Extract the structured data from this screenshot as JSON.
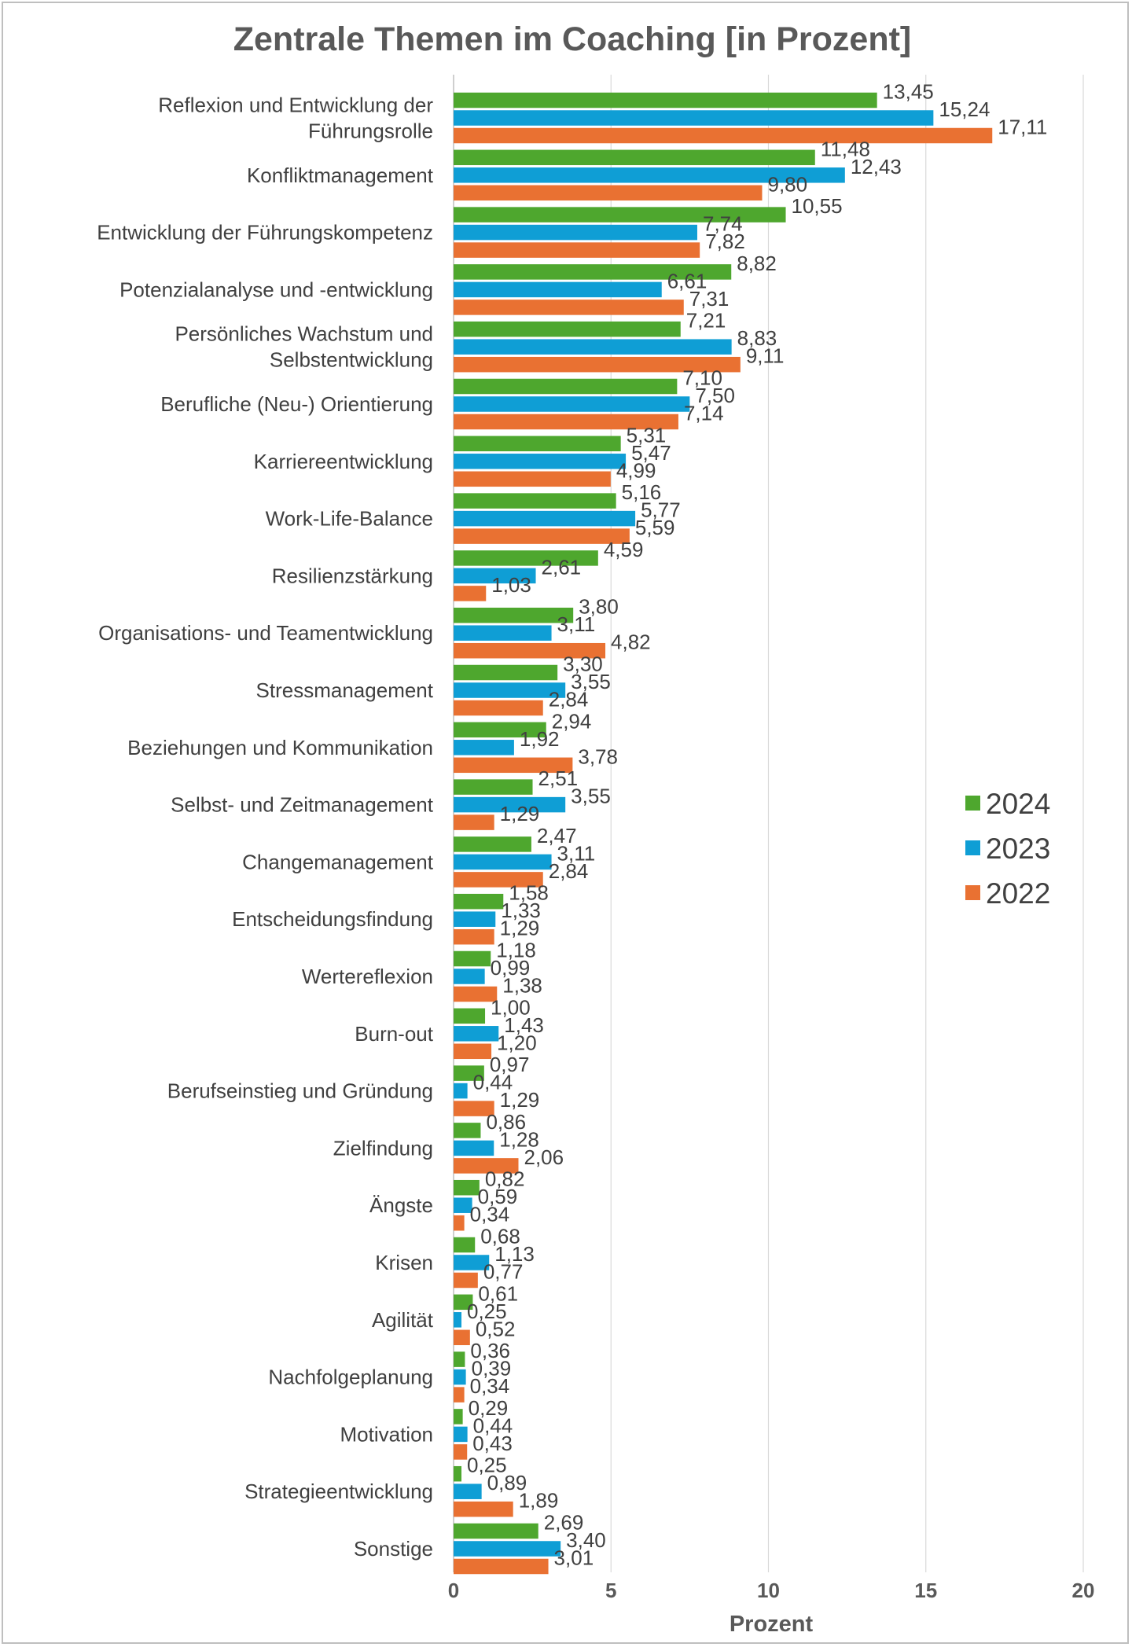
{
  "chart_data": {
    "type": "bar",
    "orientation": "horizontal",
    "title": "Zentrale Themen im Coaching [in Prozent]",
    "xlabel": "Prozent",
    "ylabel": "",
    "xlim": [
      0,
      20
    ],
    "xticks": [
      "0",
      "5",
      "10",
      "15",
      "20"
    ],
    "grid": "vertical",
    "legend_position": "right",
    "categories": [
      [
        "Reflexion und Entwicklung der",
        "Führungsrolle"
      ],
      [
        "Konfliktmanagement"
      ],
      [
        "Entwicklung der Führungskompetenz"
      ],
      [
        "Potenzialanalyse und -entwicklung"
      ],
      [
        "Persönliches Wachstum und",
        "Selbstentwicklung"
      ],
      [
        "Berufliche (Neu-) Orientierung"
      ],
      [
        "Karriereentwicklung"
      ],
      [
        "Work-Life-Balance"
      ],
      [
        "Resilienzstärkung"
      ],
      [
        "Organisations- und Teamentwicklung"
      ],
      [
        "Stressmanagement"
      ],
      [
        "Beziehungen und Kommunikation"
      ],
      [
        "Selbst- und Zeitmanagement"
      ],
      [
        "Changemanagement"
      ],
      [
        "Entscheidungsfindung"
      ],
      [
        "Wertereflexion"
      ],
      [
        "Burn-out"
      ],
      [
        "Berufseinstieg und Gründung"
      ],
      [
        "Zielfindung"
      ],
      [
        "Ängste"
      ],
      [
        "Krisen"
      ],
      [
        "Agilität"
      ],
      [
        "Nachfolgeplanung"
      ],
      [
        "Motivation"
      ],
      [
        "Strategieentwicklung"
      ],
      [
        "Sonstige"
      ]
    ],
    "series": [
      {
        "name": "2024",
        "color": "#4ea72e",
        "values": [
          13.45,
          11.48,
          10.55,
          8.82,
          7.21,
          7.1,
          5.31,
          5.16,
          4.59,
          3.8,
          3.3,
          2.94,
          2.51,
          2.47,
          1.58,
          1.18,
          1.0,
          0.97,
          0.86,
          0.82,
          0.68,
          0.61,
          0.36,
          0.29,
          0.25,
          2.69
        ],
        "labels": [
          "13,45",
          "11,48",
          "10,55",
          "8,82",
          "7,21",
          "7,10",
          "5,31",
          "5,16",
          "4,59",
          "3,80",
          "3,30",
          "2,94",
          "2,51",
          "2,47",
          "1,58",
          "1,18",
          "1,00",
          "0,97",
          "0,86",
          "0,82",
          "0,68",
          "0,61",
          "0,36",
          "0,29",
          "0,25",
          "2,69"
        ]
      },
      {
        "name": "2023",
        "color": "#0f9ed5",
        "values": [
          15.24,
          12.43,
          7.74,
          6.61,
          8.83,
          7.5,
          5.47,
          5.77,
          2.61,
          3.11,
          3.55,
          1.92,
          3.55,
          3.11,
          1.33,
          0.99,
          1.43,
          0.44,
          1.28,
          0.59,
          1.13,
          0.25,
          0.39,
          0.44,
          0.89,
          3.4
        ],
        "labels": [
          "15,24",
          "12,43",
          "7,74",
          "6,61",
          "8,83",
          "7,50",
          "5,47",
          "5,77",
          "2,61",
          "3,11",
          "3,55",
          "1,92",
          "3,55",
          "3,11",
          "1,33",
          "0,99",
          "1,43",
          "0,44",
          "1,28",
          "0,59",
          "1,13",
          "0,25",
          "0,39",
          "0,44",
          "0,89",
          "3,40"
        ]
      },
      {
        "name": "2022",
        "color": "#e97132",
        "values": [
          17.11,
          9.8,
          7.82,
          7.31,
          9.11,
          7.14,
          4.99,
          5.59,
          1.03,
          4.82,
          2.84,
          3.78,
          1.29,
          2.84,
          1.29,
          1.38,
          1.2,
          1.29,
          2.06,
          0.34,
          0.77,
          0.52,
          0.34,
          0.43,
          1.89,
          3.01
        ],
        "labels": [
          "17,11",
          "9,80",
          "7,82",
          "7,31",
          "9,11",
          "7,14",
          "4,99",
          "5,59",
          "1,03",
          "4,82",
          "2,84",
          "3,78",
          "1,29",
          "2,84",
          "1,29",
          "1,38",
          "1,20",
          "1,29",
          "2,06",
          "0,34",
          "0,77",
          "0,52",
          "0,34",
          "0,43",
          "1,89",
          "3,01"
        ]
      }
    ]
  }
}
